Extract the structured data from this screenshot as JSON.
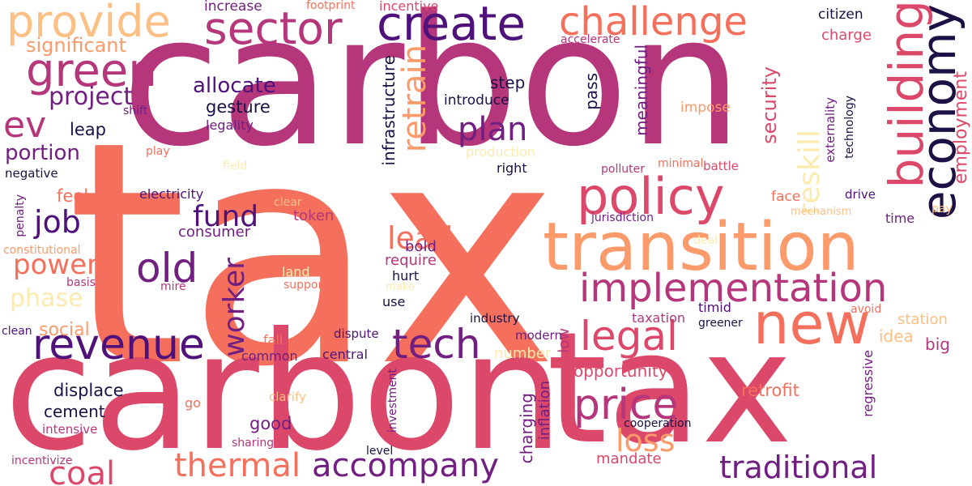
{
  "words": [
    "carbon",
    "tax",
    "carbon",
    "tax",
    "transition",
    "new",
    "policy",
    "implementation",
    "challenge",
    "create",
    "sector",
    "provide",
    "green",
    "revenue",
    "tech",
    "price",
    "legal",
    "economy",
    "building",
    "old",
    "coal",
    "thermal",
    "accompany",
    "traditional",
    "loss",
    "plan",
    "lead",
    "job",
    "fund",
    "worker",
    "retrain",
    "reskill",
    "power",
    "phase",
    "project",
    "ev",
    "significant",
    "allocate",
    "gesture",
    "leap",
    "portion",
    "security",
    "employment",
    "step",
    "introduce",
    "pass",
    "meaningful",
    "impose",
    "externality",
    "technology",
    "accelerate",
    "citizen",
    "charge",
    "increase",
    "footprint",
    "incentive",
    "shift",
    "play",
    "negative",
    "field",
    "production",
    "right",
    "minimal",
    "battle",
    "polluter",
    "legality",
    "infrastructure",
    "feel",
    "electricity",
    "consumer",
    "token",
    "penalty",
    "constitutional",
    "basis",
    "mire",
    "clean",
    "social",
    "common",
    "fall",
    "dispute",
    "central",
    "displace",
    "cement",
    "intensive",
    "incentivize",
    "go",
    "clarify",
    "sharing",
    "good",
    "investment",
    "level",
    "charging",
    "inflation",
    "low",
    "number",
    "opportunity",
    "mandate",
    "cooperation",
    "retrofit",
    "regressive",
    "idea",
    "big",
    "station",
    "avoid",
    "greener",
    "timid",
    "taxation",
    "industry",
    "modern",
    "use",
    "hurt",
    "require",
    "bold",
    "make",
    "support",
    "land",
    "clear",
    "face",
    "drive",
    "time",
    "pay",
    "mechanism",
    "jurisdiction",
    "deal"
  ],
  "colors": {
    "magenta": "#b5367a",
    "coral": "#f4705c",
    "rose": "#dc4869",
    "purple": "#711f81",
    "deep_purple": "#4f127b",
    "navy": "#1c1044",
    "orange": "#fb9a6a",
    "peach": "#fcbf84",
    "cream": "#fcebaf",
    "dark": "#0b0724"
  }
}
